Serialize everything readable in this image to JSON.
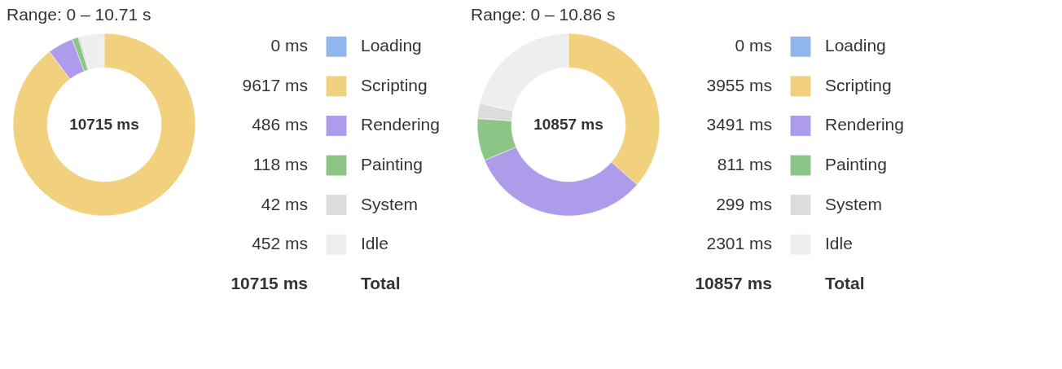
{
  "chart_data": [
    {
      "type": "donut",
      "title": "Range: 0 – 10.71 s",
      "categories": [
        "Loading",
        "Scripting",
        "Rendering",
        "Painting",
        "System",
        "Idle"
      ],
      "values": [
        0,
        9617,
        486,
        118,
        42,
        452
      ],
      "colors": [
        "#8fb7ec",
        "#f2d17e",
        "#ae9bea",
        "#8dc587",
        "#dcdcdc",
        "#eeeeee"
      ],
      "value_labels": [
        "0 ms",
        "9617 ms",
        "486 ms",
        "118 ms",
        "42 ms",
        "452 ms"
      ],
      "annotations": [
        "10715 ms",
        "10715 ms",
        "Total"
      ],
      "legend": "right"
    },
    {
      "type": "donut",
      "title": "Range: 0 – 10.86 s",
      "categories": [
        "Loading",
        "Scripting",
        "Rendering",
        "Painting",
        "System",
        "Idle"
      ],
      "values": [
        0,
        3955,
        3491,
        811,
        299,
        2301
      ],
      "colors": [
        "#8fb7ec",
        "#f2d17e",
        "#ae9bea",
        "#8dc587",
        "#dcdcdc",
        "#eeeeee"
      ],
      "value_labels": [
        "0 ms",
        "3955 ms",
        "3491 ms",
        "811 ms",
        "299 ms",
        "2301 ms"
      ],
      "annotations": [
        "10857 ms",
        "10857 ms",
        "Total"
      ],
      "legend": "right"
    }
  ]
}
